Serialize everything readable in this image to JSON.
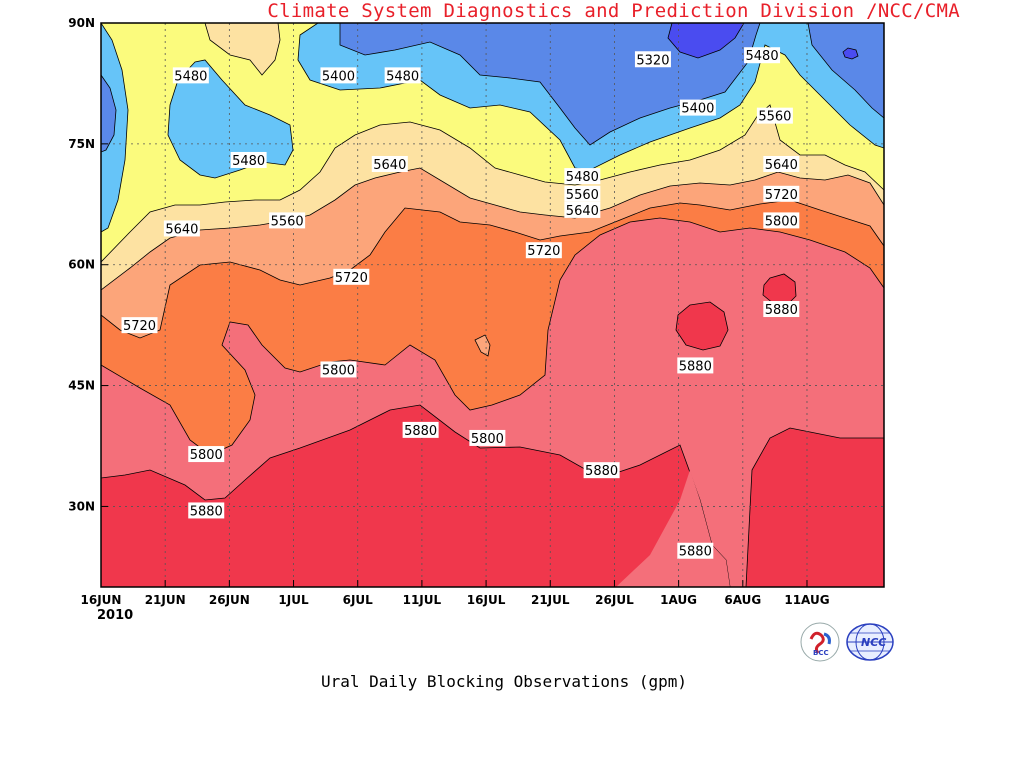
{
  "chart_data": {
    "type": "contour",
    "title": "Ural Daily Blocking Observations (gpm)",
    "credit": "Climate System Diagnostics and Prediction Division /NCC/CMA",
    "year_label": "2010",
    "x_ticks": [
      "16JUN",
      "21JUN",
      "26JUN",
      "1JUL",
      "6JUL",
      "11JUL",
      "16JUL",
      "21JUL",
      "26JUL",
      "1AUG",
      "6AUG",
      "11AUG"
    ],
    "y_ticks": [
      "30N",
      "45N",
      "60N",
      "75N",
      "90N"
    ],
    "y_tick_values": [
      30,
      45,
      60,
      75,
      90
    ],
    "xlim_days": [
      0,
      61
    ],
    "ylim": [
      20,
      90
    ],
    "grid": "dotted",
    "contour_levels": [
      5320,
      5400,
      5480,
      5560,
      5640,
      5720,
      5800,
      5880
    ],
    "contour_labels": [
      {
        "text": "5320",
        "day": 43.0,
        "lat": 85.5
      },
      {
        "text": "5480",
        "day": 51.5,
        "lat": 86.0
      },
      {
        "text": "5480",
        "day": 7.0,
        "lat": 83.5
      },
      {
        "text": "5400",
        "day": 18.5,
        "lat": 83.5
      },
      {
        "text": "5480",
        "day": 23.5,
        "lat": 83.5
      },
      {
        "text": "5400",
        "day": 46.5,
        "lat": 79.5
      },
      {
        "text": "5560",
        "day": 52.5,
        "lat": 78.5
      },
      {
        "text": "5480",
        "day": 11.5,
        "lat": 73.0
      },
      {
        "text": "5640",
        "day": 22.5,
        "lat": 72.5
      },
      {
        "text": "5640",
        "day": 53.0,
        "lat": 72.5
      },
      {
        "text": "5480",
        "day": 37.5,
        "lat": 71.0
      },
      {
        "text": "5560",
        "day": 37.5,
        "lat": 68.8
      },
      {
        "text": "5720",
        "day": 53.0,
        "lat": 68.8
      },
      {
        "text": "5640",
        "day": 37.5,
        "lat": 66.8
      },
      {
        "text": "5560",
        "day": 14.5,
        "lat": 65.5
      },
      {
        "text": "5800",
        "day": 53.0,
        "lat": 65.5
      },
      {
        "text": "5640",
        "day": 6.3,
        "lat": 64.5
      },
      {
        "text": "5720",
        "day": 34.5,
        "lat": 61.8
      },
      {
        "text": "5720",
        "day": 19.5,
        "lat": 58.5
      },
      {
        "text": "5880",
        "day": 53.0,
        "lat": 54.5
      },
      {
        "text": "5720",
        "day": 3.0,
        "lat": 52.5
      },
      {
        "text": "5880",
        "day": 46.3,
        "lat": 47.5
      },
      {
        "text": "5800",
        "day": 18.5,
        "lat": 47.0
      },
      {
        "text": "5880",
        "day": 24.9,
        "lat": 39.5
      },
      {
        "text": "5800",
        "day": 30.1,
        "lat": 38.5
      },
      {
        "text": "5800",
        "day": 8.2,
        "lat": 36.5
      },
      {
        "text": "5880",
        "day": 39.0,
        "lat": 34.5
      },
      {
        "text": "5880",
        "day": 8.2,
        "lat": 29.5
      },
      {
        "text": "5880",
        "day": 46.3,
        "lat": 24.5
      }
    ]
  },
  "colors": {
    "lt5320": "#4a4cf0",
    "c5320": "#5a88e8",
    "c5400": "#66c4f8",
    "c5480": "#fbfb7d",
    "c5560": "#fde2a2",
    "c5640": "#fca57a",
    "c5720": "#fb7d45",
    "c5800": "#f46f7a",
    "c5880": "#f0374c",
    "credit": "#e8202a"
  }
}
